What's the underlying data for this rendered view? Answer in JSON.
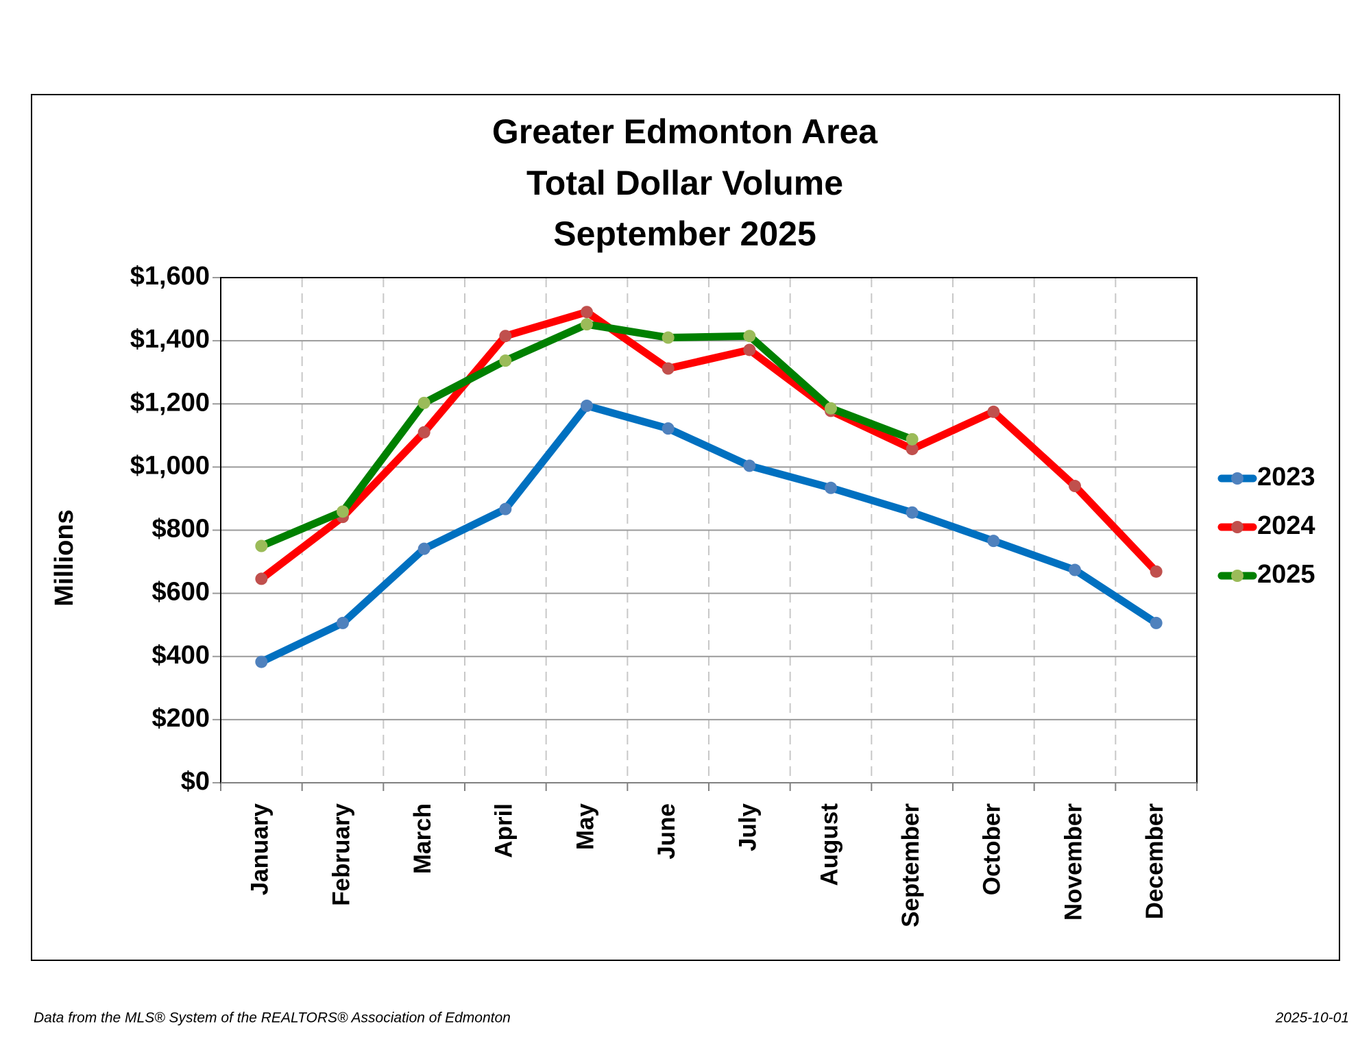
{
  "chart_data": {
    "type": "line",
    "title": [
      "Greater Edmonton Area",
      "Total Dollar Volume",
      "September 2025"
    ],
    "y_label": "Millions",
    "categories": [
      "January",
      "February",
      "March",
      "April",
      "May",
      "June",
      "July",
      "August",
      "September",
      "October",
      "November",
      "December"
    ],
    "series": [
      {
        "name": "2023",
        "color": "#0070c0",
        "marker_color": "#4f81bd",
        "values": [
          383,
          506,
          741,
          867,
          1194,
          1122,
          1004,
          934,
          856,
          766,
          674,
          506
        ]
      },
      {
        "name": "2024",
        "color": "#ff0000",
        "marker_color": "#c0504d",
        "values": [
          646,
          842,
          1110,
          1415,
          1491,
          1312,
          1371,
          1178,
          1057,
          1175,
          940,
          669
        ]
      },
      {
        "name": "2025",
        "color": "#008000",
        "marker_color": "#9bbb59",
        "values": [
          750,
          859,
          1203,
          1337,
          1452,
          1410,
          1415,
          1186,
          1088,
          null,
          null,
          null
        ]
      }
    ],
    "ylim": [
      0,
      1600
    ],
    "yticks": [
      {
        "value": 0,
        "label": "$0"
      },
      {
        "value": 200,
        "label": "$200"
      },
      {
        "value": 400,
        "label": "$400"
      },
      {
        "value": 600,
        "label": "$600"
      },
      {
        "value": 800,
        "label": "$800"
      },
      {
        "value": 1000,
        "label": "$1,000"
      },
      {
        "value": 1200,
        "label": "$1,200"
      },
      {
        "value": 1400,
        "label": "$1,400"
      },
      {
        "value": 1600,
        "label": "$1,600"
      }
    ],
    "grid": true,
    "legend": "right",
    "footer_left": "Data from the MLS® System of the REALTORS® Association of Edmonton",
    "footer_right": "2025-10-01"
  }
}
